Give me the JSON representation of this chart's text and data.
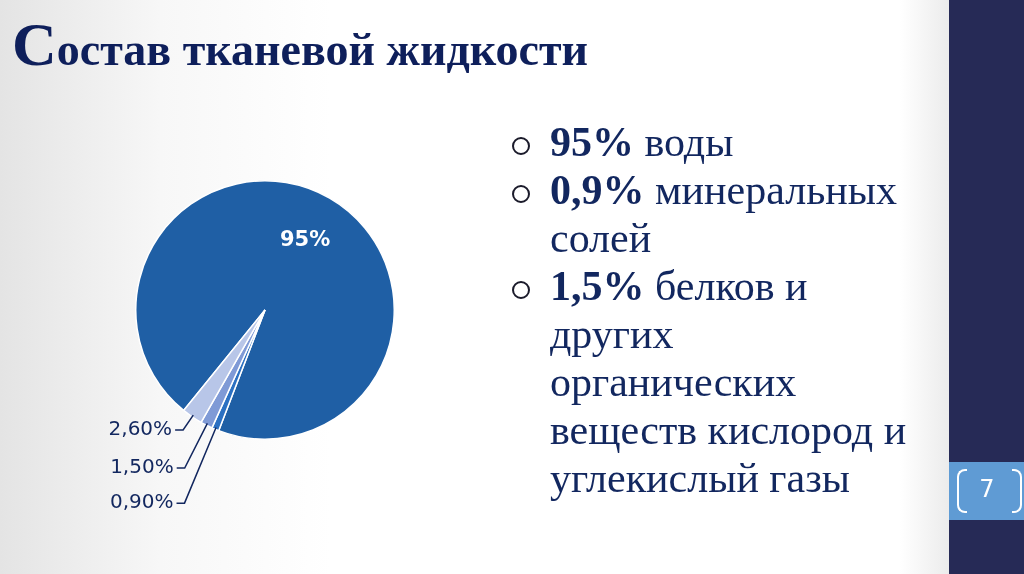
{
  "chart_data": {
    "type": "pie",
    "title": "Состав тканевой жидкости",
    "categories": [
      null,
      null,
      null,
      null
    ],
    "values": [
      95,
      0.9,
      1.5,
      2.6
    ],
    "colors": [
      "#1f5fa5",
      "#2b70c2",
      "#7f9ad6",
      "#b8c6e8"
    ],
    "value_labels": [
      "95%",
      "0,90%",
      "1,50%",
      "2,60%"
    ],
    "annotations": [
      "95% воды",
      "0,9% минеральных солей",
      "1,5% белков и других органических веществ кислород и углекислый газы",
      "7"
    ]
  }
}
